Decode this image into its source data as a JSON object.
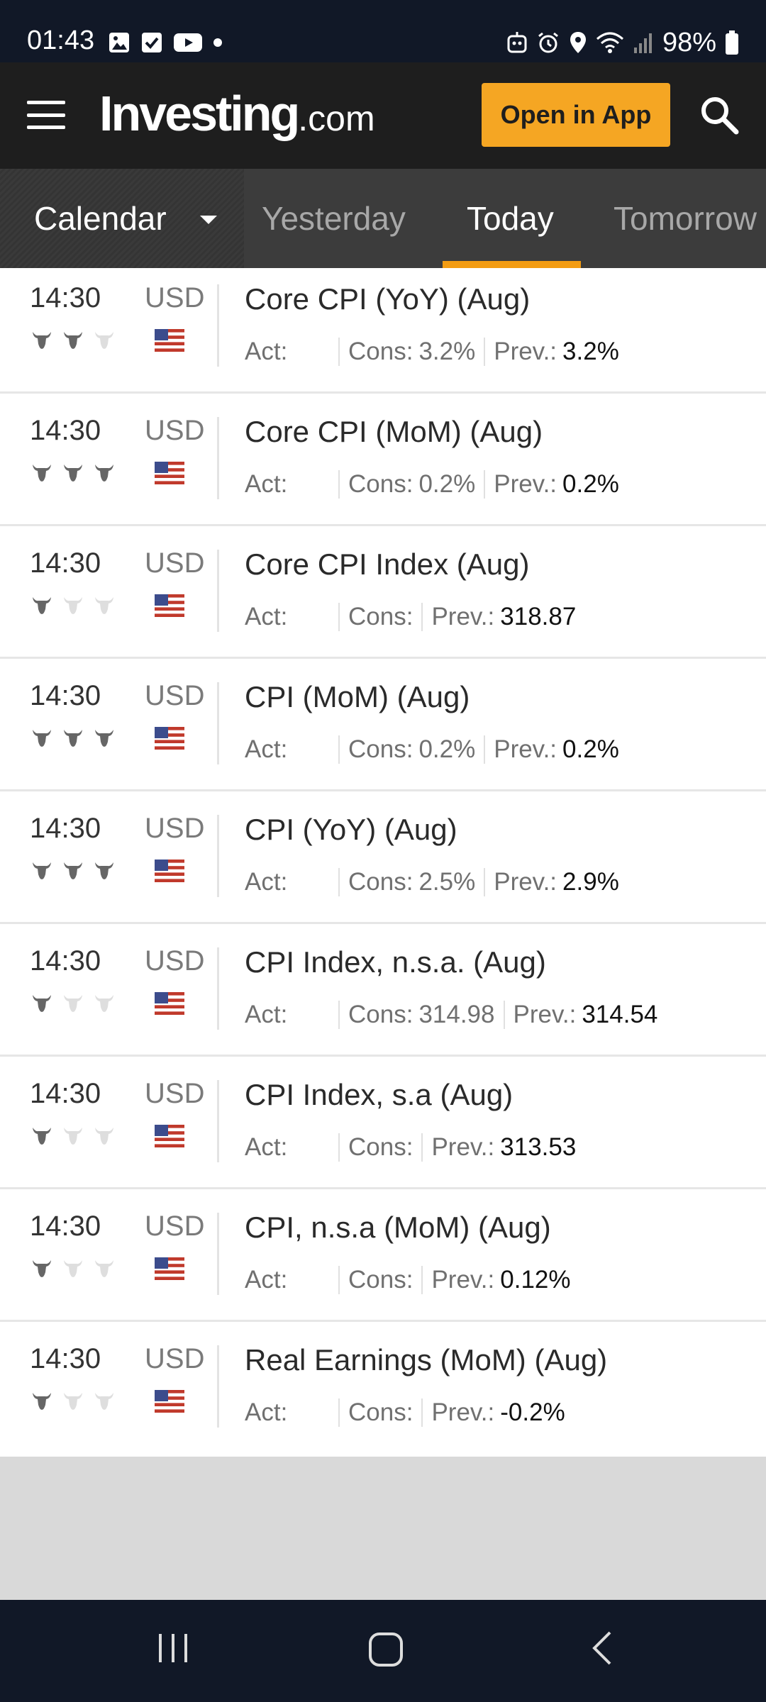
{
  "status_bar": {
    "time": "01:43",
    "battery": "98%",
    "left_icons": [
      "gallery-icon",
      "checkbox-icon",
      "youtube-icon",
      "dot-icon"
    ],
    "right_icons": [
      "robot-icon",
      "alarm-icon",
      "location-icon",
      "wifi-icon",
      "signal-icon",
      "battery-icon"
    ]
  },
  "header": {
    "logo_main": "Investing",
    "logo_tld": ".com",
    "open_app_label": "Open in App",
    "accent_color": "#f5a623"
  },
  "tabs": {
    "calendar_label": "Calendar",
    "items": [
      {
        "label": "Yesterday",
        "active": false
      },
      {
        "label": "Today",
        "active": true
      },
      {
        "label": "Tomorrow",
        "active": false
      }
    ]
  },
  "events": [
    {
      "time": "14:30",
      "currency": "USD",
      "importance": 2,
      "title": "Core CPI (YoY) (Aug)",
      "act_label": "Act:",
      "cons_label": "Cons:",
      "cons_value": "3.2%",
      "prev_label": "Prev.:",
      "prev_value": "3.2%"
    },
    {
      "time": "14:30",
      "currency": "USD",
      "importance": 3,
      "title": "Core CPI (MoM) (Aug)",
      "act_label": "Act:",
      "cons_label": "Cons:",
      "cons_value": "0.2%",
      "prev_label": "Prev.:",
      "prev_value": "0.2%"
    },
    {
      "time": "14:30",
      "currency": "USD",
      "importance": 1,
      "title": "Core CPI Index (Aug)",
      "act_label": "Act:",
      "cons_label": "Cons:",
      "cons_value": "",
      "prev_label": "Prev.:",
      "prev_value": "318.87"
    },
    {
      "time": "14:30",
      "currency": "USD",
      "importance": 3,
      "title": "CPI (MoM) (Aug)",
      "act_label": "Act:",
      "cons_label": "Cons:",
      "cons_value": "0.2%",
      "prev_label": "Prev.:",
      "prev_value": "0.2%"
    },
    {
      "time": "14:30",
      "currency": "USD",
      "importance": 3,
      "title": "CPI (YoY) (Aug)",
      "act_label": "Act:",
      "cons_label": "Cons:",
      "cons_value": "2.5%",
      "prev_label": "Prev.:",
      "prev_value": "2.9%"
    },
    {
      "time": "14:30",
      "currency": "USD",
      "importance": 1,
      "title": "CPI Index, n.s.a. (Aug)",
      "act_label": "Act:",
      "cons_label": "Cons:",
      "cons_value": "314.98",
      "prev_label": "Prev.:",
      "prev_value": "314.54"
    },
    {
      "time": "14:30",
      "currency": "USD",
      "importance": 1,
      "title": "CPI Index, s.a (Aug)",
      "act_label": "Act:",
      "cons_label": "Cons:",
      "cons_value": "",
      "prev_label": "Prev.:",
      "prev_value": "313.53"
    },
    {
      "time": "14:30",
      "currency": "USD",
      "importance": 1,
      "title": "CPI, n.s.a (MoM) (Aug)",
      "act_label": "Act:",
      "cons_label": "Cons:",
      "cons_value": "",
      "prev_label": "Prev.:",
      "prev_value": "0.12%"
    },
    {
      "time": "14:30",
      "currency": "USD",
      "importance": 1,
      "title": "Real Earnings (MoM) (Aug)",
      "act_label": "Act:",
      "cons_label": "Cons:",
      "cons_value": "",
      "prev_label": "Prev.:",
      "prev_value": "-0.2%"
    }
  ],
  "nav": {
    "icons": [
      "recent-apps-icon",
      "home-icon",
      "back-icon"
    ]
  }
}
